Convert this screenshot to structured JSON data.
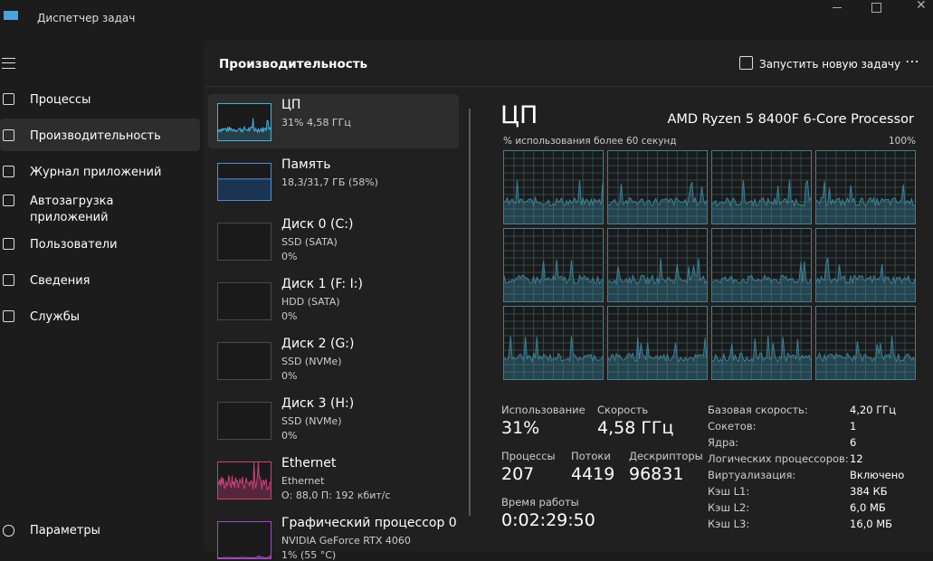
{
  "title_bar": {
    "title": "Диспетчер задач"
  },
  "nav": {
    "items": [
      "Процессы",
      "Производительность",
      "Журнал приложений",
      "Автозагрузка\nприложений",
      "Пользователи",
      "Сведения",
      "Службы"
    ],
    "settings": "Параметры"
  },
  "header": {
    "title": "Производительность",
    "new_task": "Запустить новую задачу"
  },
  "devices": [
    {
      "name": "ЦП",
      "lines": [
        "31% 4,58 ГГц"
      ]
    },
    {
      "name": "Память",
      "lines": [
        "18,3/31,7 ГБ (58%)"
      ]
    },
    {
      "name": "Диск 0 (C:)",
      "lines": [
        "SSD (SATA)",
        "0%"
      ]
    },
    {
      "name": "Диск 1 (F: I:)",
      "lines": [
        "HDD (SATA)",
        "0%"
      ]
    },
    {
      "name": "Диск 2 (G:)",
      "lines": [
        "SSD (NVMe)",
        "0%"
      ]
    },
    {
      "name": "Диск 3 (H:)",
      "lines": [
        "SSD (NVMe)",
        "0%"
      ]
    },
    {
      "name": "Ethernet",
      "lines": [
        "Ethernet",
        "О: 88,0 П: 192 кбит/с"
      ]
    },
    {
      "name": "Графический процессор 0",
      "lines": [
        "NVIDIA GeForce RTX 4060",
        "1% (55 °C)"
      ]
    }
  ],
  "detail": {
    "title": "ЦП",
    "model": "AMD Ryzen 5 8400F 6-Core Processor",
    "graph_label": "% использования более 60 секунд",
    "graph_max": "100%",
    "stats": [
      {
        "label": "Использование",
        "value": "31%"
      },
      {
        "label": "Скорость",
        "value": "4,58 ГГц"
      },
      {
        "label": "Процессы",
        "value": "207"
      },
      {
        "label": "Потоки",
        "value": "4419"
      },
      {
        "label": "Дескрипторы",
        "value": "96831"
      },
      {
        "label": "Время работы",
        "value": "0:02:29:50"
      }
    ],
    "specs": [
      {
        "label": "Базовая скорость:",
        "value": "4,20 ГГц"
      },
      {
        "label": "Сокетов:",
        "value": "1"
      },
      {
        "label": "Ядра:",
        "value": "6"
      },
      {
        "label": "Логических процессоров:",
        "value": "12"
      },
      {
        "label": "Виртуализация:",
        "value": "Включено"
      },
      {
        "label": "Кэш L1:",
        "value": "384 КБ"
      },
      {
        "label": "Кэш L2:",
        "value": "6,0 МБ"
      },
      {
        "label": "Кэш L3:",
        "value": "16,0 МБ"
      }
    ]
  }
}
